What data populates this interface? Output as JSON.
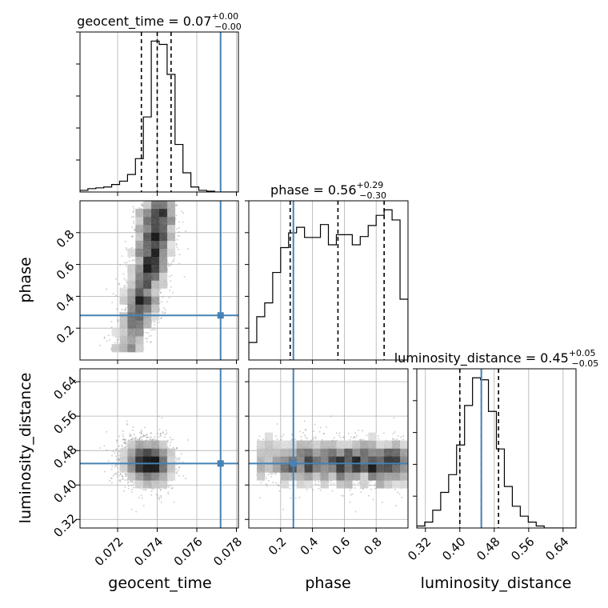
{
  "chart_data": {
    "type": "corner",
    "parameters": [
      "geocent_time",
      "phase",
      "luminosity_distance"
    ],
    "truths": {
      "geocent_time": 0.0772,
      "phase": 0.28,
      "luminosity_distance": 0.45
    },
    "truth_color": "#4682b4",
    "hist_color": "#000000",
    "ranges": {
      "geocent_time": [
        0.0701,
        0.0781
      ],
      "phase": [
        0.0,
        1.0
      ],
      "luminosity_distance": [
        0.3,
        0.67
      ]
    },
    "titles": [
      {
        "param": "geocent_time",
        "label": "geocent_time",
        "median": "0.07",
        "plus": "+0.00",
        "minus": "−0.00"
      },
      {
        "param": "phase",
        "label": "phase",
        "median": "0.56",
        "plus": "+0.29",
        "minus": "−0.30"
      },
      {
        "param": "luminosity_distance",
        "label": "luminosity_distance",
        "median": "0.45",
        "plus": "+0.05",
        "minus": "−0.05"
      }
    ],
    "quantiles": {
      "geocent_time": [
        0.0732,
        0.074,
        0.0747
      ],
      "phase": [
        0.26,
        0.56,
        0.85
      ],
      "luminosity_distance": [
        0.4,
        0.45,
        0.49
      ]
    },
    "ticks": {
      "geocent_time": [
        0.072,
        0.074,
        0.076,
        0.078
      ],
      "phase": [
        0.2,
        0.4,
        0.6,
        0.8
      ],
      "luminosity_distance": [
        0.32,
        0.4,
        0.48,
        0.56,
        0.64
      ]
    },
    "tick_labels": {
      "geocent_time": [
        "0.072",
        "0.074",
        "0.076",
        "0.078"
      ],
      "phase": [
        "0.2",
        "0.4",
        "0.6",
        "0.8"
      ],
      "luminosity_distance": [
        "0.32",
        "0.40",
        "0.48",
        "0.56",
        "0.64"
      ]
    },
    "histograms": {
      "geocent_time": {
        "edges": [
          0.0701,
          0.0705,
          0.0709,
          0.0713,
          0.0717,
          0.0721,
          0.0725,
          0.0729,
          0.0733,
          0.0737,
          0.0741,
          0.0745,
          0.0749,
          0.0753,
          0.0757,
          0.0761,
          0.0765,
          0.0769,
          0.0773,
          0.0777,
          0.0781
        ],
        "counts": [
          2,
          4,
          5,
          6,
          9,
          13,
          21,
          40,
          90,
          181,
          177,
          141,
          57,
          23,
          6,
          2,
          1,
          0,
          0,
          0
        ]
      },
      "phase": {
        "edges": [
          0.0,
          0.05,
          0.1,
          0.15,
          0.2,
          0.25,
          0.3,
          0.35,
          0.4,
          0.45,
          0.5,
          0.55,
          0.6,
          0.65,
          0.7,
          0.75,
          0.8,
          0.85,
          0.9,
          0.95,
          1.0
        ],
        "counts": [
          19,
          47,
          62,
          95,
          122,
          138,
          144,
          133,
          133,
          147,
          125,
          136,
          136,
          125,
          134,
          146,
          157,
          163,
          152,
          66
        ]
      },
      "luminosity_distance": {
        "edges": [
          0.3,
          0.3185,
          0.337,
          0.3555,
          0.374,
          0.3925,
          0.411,
          0.4295,
          0.448,
          0.4665,
          0.485,
          0.5035,
          0.522,
          0.5405,
          0.559,
          0.5775,
          0.596,
          0.6145,
          0.633,
          0.6515,
          0.67
        ],
        "counts": [
          1,
          3,
          9,
          18,
          27,
          42,
          62,
          76,
          75,
          59,
          40,
          21,
          11,
          6,
          3,
          1,
          0,
          0,
          0,
          0
        ]
      }
    },
    "grid": true
  }
}
